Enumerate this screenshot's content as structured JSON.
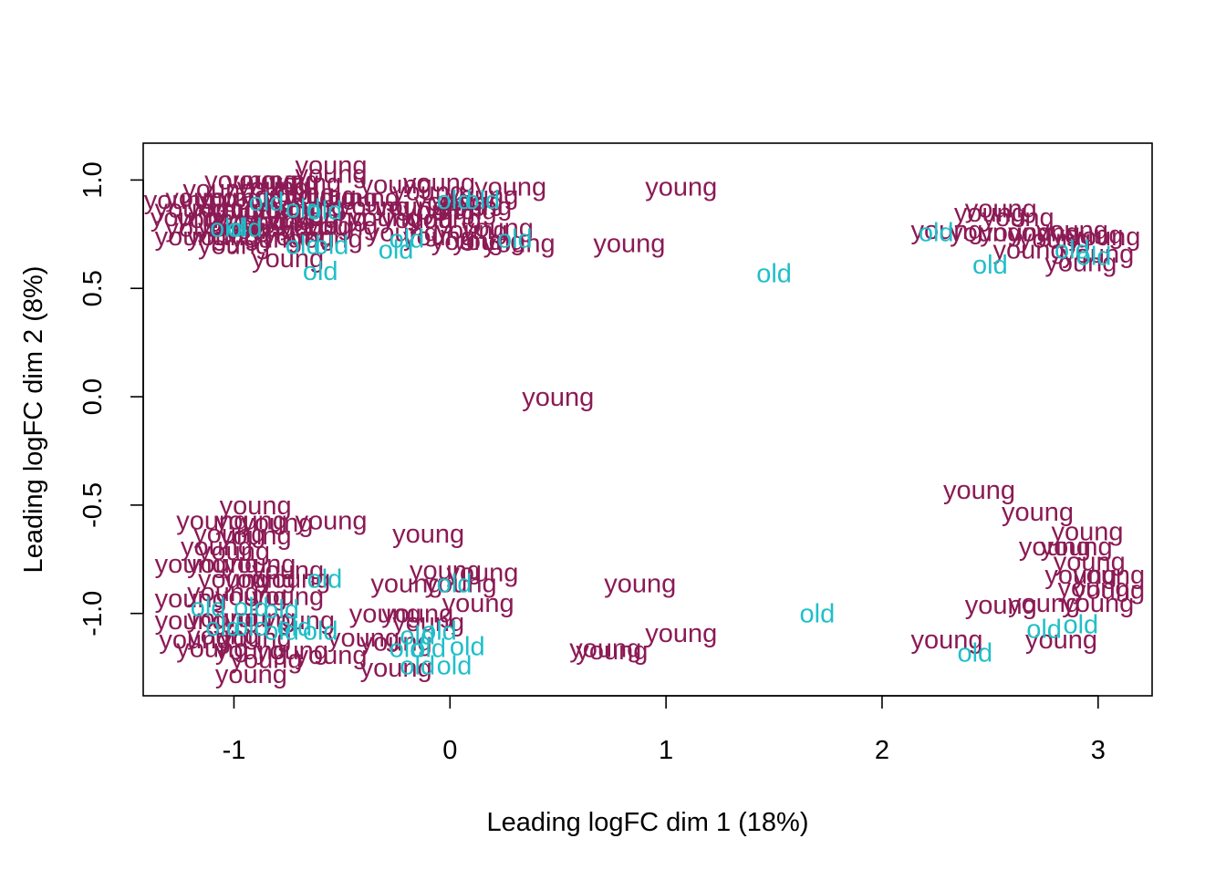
{
  "chart_data": {
    "type": "scatter",
    "title": "",
    "xlabel": "Leading logFC dim 1 (18%)",
    "ylabel": "Leading logFC dim 2 (8%)",
    "xlim": [
      -1.42,
      3.25
    ],
    "ylim": [
      -1.38,
      1.17
    ],
    "x_ticks": [
      -1,
      0,
      1,
      2,
      3
    ],
    "y_ticks": [
      -1.0,
      -0.5,
      0.0,
      0.5,
      1.0
    ],
    "x_tick_labels": [
      "-1",
      "0",
      "1",
      "2",
      "3"
    ],
    "y_tick_labels": [
      "-1.0",
      "-0.5",
      "0.0",
      "0.5",
      "1.0"
    ],
    "grid": false,
    "legend": "none",
    "colors": {
      "young": "#8B1A55",
      "old": "#1FBFC9"
    },
    "points": [
      {
        "x": -0.55,
        "y": 1.07,
        "label": "young"
      },
      {
        "x": -0.55,
        "y": 1.03,
        "label": "young"
      },
      {
        "x": -0.97,
        "y": 1.0,
        "label": "young"
      },
      {
        "x": -0.87,
        "y": 1.0,
        "label": "young"
      },
      {
        "x": -0.77,
        "y": 1.0,
        "label": "young"
      },
      {
        "x": -0.67,
        "y": 0.99,
        "label": "young"
      },
      {
        "x": -0.82,
        "y": 0.97,
        "label": "young"
      },
      {
        "x": -1.07,
        "y": 0.96,
        "label": "young"
      },
      {
        "x": -1.15,
        "y": 0.92,
        "label": "young"
      },
      {
        "x": -1.0,
        "y": 0.92,
        "label": "young"
      },
      {
        "x": -0.9,
        "y": 0.92,
        "label": "young"
      },
      {
        "x": -0.8,
        "y": 0.93,
        "label": "young"
      },
      {
        "x": -0.7,
        "y": 0.94,
        "label": "young"
      },
      {
        "x": -0.6,
        "y": 0.93,
        "label": "young"
      },
      {
        "x": -0.5,
        "y": 0.92,
        "label": "young"
      },
      {
        "x": -0.4,
        "y": 0.92,
        "label": "young"
      },
      {
        "x": -0.25,
        "y": 0.98,
        "label": "young"
      },
      {
        "x": -0.1,
        "y": 0.95,
        "label": "young"
      },
      {
        "x": -0.05,
        "y": 0.99,
        "label": "young"
      },
      {
        "x": 0.0,
        "y": 0.9,
        "label": "young"
      },
      {
        "x": 0.08,
        "y": 0.9,
        "label": "young"
      },
      {
        "x": 0.15,
        "y": 0.93,
        "label": "young"
      },
      {
        "x": 0.28,
        "y": 0.97,
        "label": "young"
      },
      {
        "x": 1.07,
        "y": 0.97,
        "label": "young"
      },
      {
        "x": -1.25,
        "y": 0.91,
        "label": "young"
      },
      {
        "x": -1.2,
        "y": 0.87,
        "label": "young"
      },
      {
        "x": -1.05,
        "y": 0.87,
        "label": "young"
      },
      {
        "x": -0.95,
        "y": 0.86,
        "label": "young"
      },
      {
        "x": -0.85,
        "y": 0.86,
        "label": "young"
      },
      {
        "x": -0.75,
        "y": 0.87,
        "label": "young"
      },
      {
        "x": -0.65,
        "y": 0.88,
        "label": "young"
      },
      {
        "x": -0.35,
        "y": 0.88,
        "label": "young"
      },
      {
        "x": -0.18,
        "y": 0.88,
        "label": "young"
      },
      {
        "x": -0.05,
        "y": 0.86,
        "label": "young"
      },
      {
        "x": 0.05,
        "y": 0.86,
        "label": "young"
      },
      {
        "x": 0.12,
        "y": 0.88,
        "label": "young"
      },
      {
        "x": -1.22,
        "y": 0.83,
        "label": "young"
      },
      {
        "x": -1.1,
        "y": 0.82,
        "label": "young"
      },
      {
        "x": -0.92,
        "y": 0.81,
        "label": "young"
      },
      {
        "x": -0.8,
        "y": 0.81,
        "label": "young"
      },
      {
        "x": -0.68,
        "y": 0.82,
        "label": "young"
      },
      {
        "x": -0.55,
        "y": 0.83,
        "label": "young"
      },
      {
        "x": -0.3,
        "y": 0.83,
        "label": "young"
      },
      {
        "x": -0.15,
        "y": 0.82,
        "label": "young"
      },
      {
        "x": -0.02,
        "y": 0.82,
        "label": "young"
      },
      {
        "x": -1.15,
        "y": 0.78,
        "label": "young"
      },
      {
        "x": -1.0,
        "y": 0.78,
        "label": "young"
      },
      {
        "x": -0.88,
        "y": 0.77,
        "label": "young"
      },
      {
        "x": -0.75,
        "y": 0.78,
        "label": "young"
      },
      {
        "x": -0.62,
        "y": 0.79,
        "label": "young"
      },
      {
        "x": -0.5,
        "y": 0.79,
        "label": "young"
      },
      {
        "x": -0.22,
        "y": 0.76,
        "label": "young"
      },
      {
        "x": 0.1,
        "y": 0.77,
        "label": "young"
      },
      {
        "x": 0.22,
        "y": 0.78,
        "label": "young"
      },
      {
        "x": -1.2,
        "y": 0.74,
        "label": "young"
      },
      {
        "x": -1.05,
        "y": 0.74,
        "label": "young"
      },
      {
        "x": -0.85,
        "y": 0.73,
        "label": "young"
      },
      {
        "x": -0.7,
        "y": 0.74,
        "label": "young"
      },
      {
        "x": -0.57,
        "y": 0.73,
        "label": "young"
      },
      {
        "x": -0.05,
        "y": 0.74,
        "label": "young"
      },
      {
        "x": 0.08,
        "y": 0.72,
        "label": "young"
      },
      {
        "x": 0.18,
        "y": 0.72,
        "label": "young"
      },
      {
        "x": 0.32,
        "y": 0.71,
        "label": "young"
      },
      {
        "x": -1.0,
        "y": 0.7,
        "label": "young"
      },
      {
        "x": -0.75,
        "y": 0.64,
        "label": "young"
      },
      {
        "x": 0.83,
        "y": 0.71,
        "label": "young"
      },
      {
        "x": -0.85,
        "y": 0.9,
        "label": "old"
      },
      {
        "x": -0.68,
        "y": 0.87,
        "label": "old"
      },
      {
        "x": -0.58,
        "y": 0.86,
        "label": "old"
      },
      {
        "x": -0.95,
        "y": 0.78,
        "label": "old"
      },
      {
        "x": -1.03,
        "y": 0.78,
        "label": "old"
      },
      {
        "x": -0.68,
        "y": 0.7,
        "label": "old"
      },
      {
        "x": -0.55,
        "y": 0.7,
        "label": "old"
      },
      {
        "x": -0.25,
        "y": 0.68,
        "label": "old"
      },
      {
        "x": -0.6,
        "y": 0.58,
        "label": "old"
      },
      {
        "x": 0.02,
        "y": 0.91,
        "label": "old"
      },
      {
        "x": 0.15,
        "y": 0.91,
        "label": "old"
      },
      {
        "x": -0.2,
        "y": 0.73,
        "label": "old"
      },
      {
        "x": 0.3,
        "y": 0.73,
        "label": "old"
      },
      {
        "x": 1.5,
        "y": 0.57,
        "label": "old"
      },
      {
        "x": 2.55,
        "y": 0.87,
        "label": "young"
      },
      {
        "x": 2.5,
        "y": 0.85,
        "label": "young"
      },
      {
        "x": 2.63,
        "y": 0.83,
        "label": "young"
      },
      {
        "x": 2.3,
        "y": 0.77,
        "label": "young"
      },
      {
        "x": 2.48,
        "y": 0.76,
        "label": "young"
      },
      {
        "x": 2.62,
        "y": 0.76,
        "label": "young"
      },
      {
        "x": 2.75,
        "y": 0.76,
        "label": "young"
      },
      {
        "x": 2.88,
        "y": 0.77,
        "label": "young"
      },
      {
        "x": 2.95,
        "y": 0.75,
        "label": "young"
      },
      {
        "x": 3.03,
        "y": 0.74,
        "label": "young"
      },
      {
        "x": 2.8,
        "y": 0.73,
        "label": "young"
      },
      {
        "x": 2.68,
        "y": 0.68,
        "label": "young"
      },
      {
        "x": 3.0,
        "y": 0.66,
        "label": "young"
      },
      {
        "x": 2.92,
        "y": 0.62,
        "label": "young"
      },
      {
        "x": 2.25,
        "y": 0.76,
        "label": "old"
      },
      {
        "x": 2.88,
        "y": 0.68,
        "label": "old"
      },
      {
        "x": 2.98,
        "y": 0.65,
        "label": "old"
      },
      {
        "x": 2.5,
        "y": 0.61,
        "label": "old"
      },
      {
        "x": 0.5,
        "y": 0.0,
        "label": "young"
      },
      {
        "x": -0.9,
        "y": -0.5,
        "label": "young"
      },
      {
        "x": -1.1,
        "y": -0.57,
        "label": "young"
      },
      {
        "x": -0.92,
        "y": -0.57,
        "label": "young"
      },
      {
        "x": -0.8,
        "y": -0.58,
        "label": "young"
      },
      {
        "x": -0.55,
        "y": -0.57,
        "label": "young"
      },
      {
        "x": -1.02,
        "y": -0.63,
        "label": "young"
      },
      {
        "x": -0.9,
        "y": -0.64,
        "label": "young"
      },
      {
        "x": -0.1,
        "y": -0.63,
        "label": "young"
      },
      {
        "x": -1.08,
        "y": -0.69,
        "label": "young"
      },
      {
        "x": -1.0,
        "y": -0.71,
        "label": "young"
      },
      {
        "x": -1.2,
        "y": -0.77,
        "label": "young"
      },
      {
        "x": -1.05,
        "y": -0.77,
        "label": "young"
      },
      {
        "x": -0.88,
        "y": -0.77,
        "label": "young"
      },
      {
        "x": -0.75,
        "y": -0.8,
        "label": "young"
      },
      {
        "x": -1.0,
        "y": -0.84,
        "label": "young"
      },
      {
        "x": -0.88,
        "y": -0.84,
        "label": "young"
      },
      {
        "x": -0.72,
        "y": -0.84,
        "label": "young"
      },
      {
        "x": -0.2,
        "y": -0.86,
        "label": "young"
      },
      {
        "x": -0.02,
        "y": -0.8,
        "label": "young"
      },
      {
        "x": 0.15,
        "y": -0.81,
        "label": "young"
      },
      {
        "x": 0.05,
        "y": -0.86,
        "label": "young"
      },
      {
        "x": 0.88,
        "y": -0.86,
        "label": "young"
      },
      {
        "x": -1.2,
        "y": -0.93,
        "label": "young"
      },
      {
        "x": -1.05,
        "y": -0.9,
        "label": "young"
      },
      {
        "x": -0.92,
        "y": -0.92,
        "label": "young"
      },
      {
        "x": -0.75,
        "y": -0.92,
        "label": "young"
      },
      {
        "x": 0.13,
        "y": -0.95,
        "label": "young"
      },
      {
        "x": -1.2,
        "y": -1.03,
        "label": "young"
      },
      {
        "x": -1.05,
        "y": -1.02,
        "label": "young"
      },
      {
        "x": -0.88,
        "y": -1.02,
        "label": "young"
      },
      {
        "x": -0.7,
        "y": -1.03,
        "label": "young"
      },
      {
        "x": -0.3,
        "y": -1.0,
        "label": "young"
      },
      {
        "x": -0.15,
        "y": -1.0,
        "label": "young"
      },
      {
        "x": -0.1,
        "y": -1.04,
        "label": "young"
      },
      {
        "x": -1.18,
        "y": -1.12,
        "label": "young"
      },
      {
        "x": -1.05,
        "y": -1.1,
        "label": "young"
      },
      {
        "x": -0.9,
        "y": -1.11,
        "label": "young"
      },
      {
        "x": -0.4,
        "y": -1.11,
        "label": "young"
      },
      {
        "x": -0.25,
        "y": -1.13,
        "label": "young"
      },
      {
        "x": -1.1,
        "y": -1.16,
        "label": "young"
      },
      {
        "x": -0.92,
        "y": -1.17,
        "label": "young"
      },
      {
        "x": -0.73,
        "y": -1.17,
        "label": "young"
      },
      {
        "x": -0.55,
        "y": -1.19,
        "label": "young"
      },
      {
        "x": -0.85,
        "y": -1.21,
        "label": "young"
      },
      {
        "x": -0.25,
        "y": -1.25,
        "label": "young"
      },
      {
        "x": -0.92,
        "y": -1.28,
        "label": "young"
      },
      {
        "x": 0.72,
        "y": -1.16,
        "label": "young"
      },
      {
        "x": 0.75,
        "y": -1.17,
        "label": "young"
      },
      {
        "x": 1.07,
        "y": -1.09,
        "label": "young"
      },
      {
        "x": -0.58,
        "y": -0.84,
        "label": "old"
      },
      {
        "x": 0.02,
        "y": -0.86,
        "label": "old"
      },
      {
        "x": -1.12,
        "y": -0.97,
        "label": "old"
      },
      {
        "x": -0.92,
        "y": -0.97,
        "label": "old"
      },
      {
        "x": -0.78,
        "y": -0.98,
        "label": "old"
      },
      {
        "x": -1.05,
        "y": -1.06,
        "label": "old"
      },
      {
        "x": -0.92,
        "y": -1.06,
        "label": "old"
      },
      {
        "x": -0.72,
        "y": -1.06,
        "label": "old"
      },
      {
        "x": -0.78,
        "y": -1.08,
        "label": "old"
      },
      {
        "x": -0.6,
        "y": -1.08,
        "label": "old"
      },
      {
        "x": -0.05,
        "y": -1.08,
        "label": "old"
      },
      {
        "x": -0.15,
        "y": -1.1,
        "label": "old"
      },
      {
        "x": -0.2,
        "y": -1.16,
        "label": "old"
      },
      {
        "x": -0.1,
        "y": -1.16,
        "label": "old"
      },
      {
        "x": 0.08,
        "y": -1.15,
        "label": "old"
      },
      {
        "x": -0.15,
        "y": -1.24,
        "label": "old"
      },
      {
        "x": 0.02,
        "y": -1.24,
        "label": "old"
      },
      {
        "x": 1.7,
        "y": -1.0,
        "label": "old"
      },
      {
        "x": 2.45,
        "y": -0.43,
        "label": "young"
      },
      {
        "x": 2.72,
        "y": -0.53,
        "label": "young"
      },
      {
        "x": 2.95,
        "y": -0.62,
        "label": "young"
      },
      {
        "x": 2.8,
        "y": -0.69,
        "label": "young"
      },
      {
        "x": 2.9,
        "y": -0.69,
        "label": "young"
      },
      {
        "x": 2.96,
        "y": -0.76,
        "label": "young"
      },
      {
        "x": 3.05,
        "y": -0.82,
        "label": "young"
      },
      {
        "x": 2.92,
        "y": -0.82,
        "label": "young"
      },
      {
        "x": 2.98,
        "y": -0.88,
        "label": "young"
      },
      {
        "x": 3.05,
        "y": -0.89,
        "label": "young"
      },
      {
        "x": 2.55,
        "y": -0.96,
        "label": "young"
      },
      {
        "x": 2.75,
        "y": -0.95,
        "label": "young"
      },
      {
        "x": 3.0,
        "y": -0.95,
        "label": "young"
      },
      {
        "x": 2.3,
        "y": -1.12,
        "label": "young"
      },
      {
        "x": 2.83,
        "y": -1.12,
        "label": "young"
      },
      {
        "x": 2.75,
        "y": -1.07,
        "label": "old"
      },
      {
        "x": 2.92,
        "y": -1.05,
        "label": "old"
      },
      {
        "x": 2.43,
        "y": -1.18,
        "label": "old"
      }
    ]
  }
}
